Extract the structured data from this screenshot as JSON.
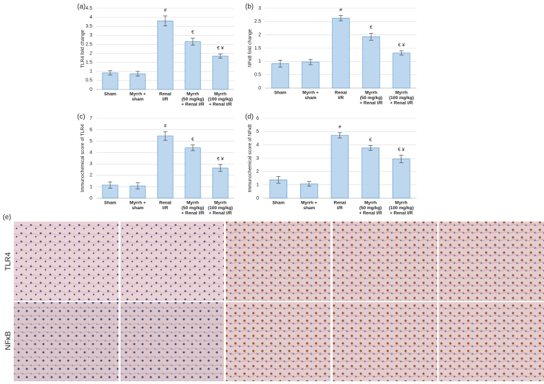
{
  "chart_data": [
    {
      "type": "bar",
      "label": "(a)",
      "y_label": "TLR4 fold change",
      "categories": [
        [
          "Sham"
        ],
        [
          "Myrrh +",
          "sham"
        ],
        [
          "Renal",
          "I/R"
        ],
        [
          "Myrrh",
          "(50 mg/kg)",
          "+ Renal I/R"
        ],
        [
          "Myrrh",
          "(100 mg/kg)",
          "+ Renal I/R"
        ]
      ],
      "values": [
        0.92,
        0.87,
        3.8,
        2.65,
        1.85
      ],
      "errors": [
        0.12,
        0.13,
        0.28,
        0.2,
        0.12
      ],
      "annotations": [
        null,
        null,
        "#",
        "€",
        "€ ¥"
      ],
      "color": "#bdd7ee",
      "edge_color": "#5b9bd5",
      "grid": true,
      "ylim": [
        0,
        4.5
      ],
      "yticks": [
        0,
        0.5,
        1,
        1.5,
        2,
        2.5,
        3,
        3.5,
        4,
        4.5
      ]
    },
    {
      "type": "bar",
      "label": "(b)",
      "y_label": "NFκB fold change",
      "categories": [
        [
          "Sham"
        ],
        [
          "Myrrh +",
          "sham"
        ],
        [
          "Renal",
          "I/R"
        ],
        [
          "Myrrh",
          "(50 mg/kg)",
          "+ Renal I/R"
        ],
        [
          "Myrrh",
          "(100 mg/kg)",
          "+ Renal I/R"
        ]
      ],
      "values": [
        0.92,
        0.98,
        2.63,
        1.93,
        1.32
      ],
      "errors": [
        0.13,
        0.1,
        0.1,
        0.13,
        0.08
      ],
      "annotations": [
        null,
        null,
        "#",
        "€",
        "€ ¥"
      ],
      "color": "#bdd7ee",
      "edge_color": "#5b9bd5",
      "grid": true,
      "ylim": [
        0,
        3
      ],
      "yticks": [
        0,
        0.5,
        1,
        1.5,
        2,
        2.5,
        3
      ]
    },
    {
      "type": "bar",
      "label": "(c)",
      "y_label": "Immunochemical score of TLR4",
      "categories": [
        [
          "Sham"
        ],
        [
          "Myrrh +",
          "sham"
        ],
        [
          "Renal",
          "I/R"
        ],
        [
          "Myrrh",
          "(50 mg/kg)",
          "+ Renal I/R"
        ],
        [
          "Myrrh",
          "(100 mg/kg)",
          "+ Renal I/R"
        ]
      ],
      "values": [
        1.15,
        1.08,
        5.45,
        4.42,
        2.65
      ],
      "errors": [
        0.28,
        0.28,
        0.38,
        0.25,
        0.3
      ],
      "annotations": [
        null,
        null,
        "#",
        "€",
        "€ ¥"
      ],
      "color": "#bdd7ee",
      "edge_color": "#5b9bd5",
      "grid": true,
      "ylim": [
        0,
        7
      ],
      "yticks": [
        0,
        1,
        2,
        3,
        4,
        5,
        6,
        7
      ]
    },
    {
      "type": "bar",
      "label": "(d)",
      "y_label": "Immunochemical score of NFκB",
      "categories": [
        [
          "Sham"
        ],
        [
          "Myrrh +",
          "sham"
        ],
        [
          "Renal",
          "I/R"
        ],
        [
          "Myrrh",
          "(50 mg/kg)",
          "+ Renal I/R"
        ],
        [
          "Myrrh",
          "(100 mg/kg)",
          "+ Renal I/R"
        ]
      ],
      "values": [
        1.38,
        1.08,
        4.72,
        3.78,
        2.95
      ],
      "errors": [
        0.25,
        0.18,
        0.2,
        0.18,
        0.28
      ],
      "annotations": [
        null,
        null,
        "#",
        "€",
        "€ ¥"
      ],
      "color": "#bdd7ee",
      "edge_color": "#5b9bd5",
      "grid": true,
      "ylim": [
        0,
        6
      ],
      "yticks": [
        0,
        1,
        2,
        3,
        4,
        5,
        6
      ]
    }
  ],
  "micrographs": {
    "label": "(e)",
    "rows": [
      "TLR4",
      "NFκB"
    ]
  }
}
